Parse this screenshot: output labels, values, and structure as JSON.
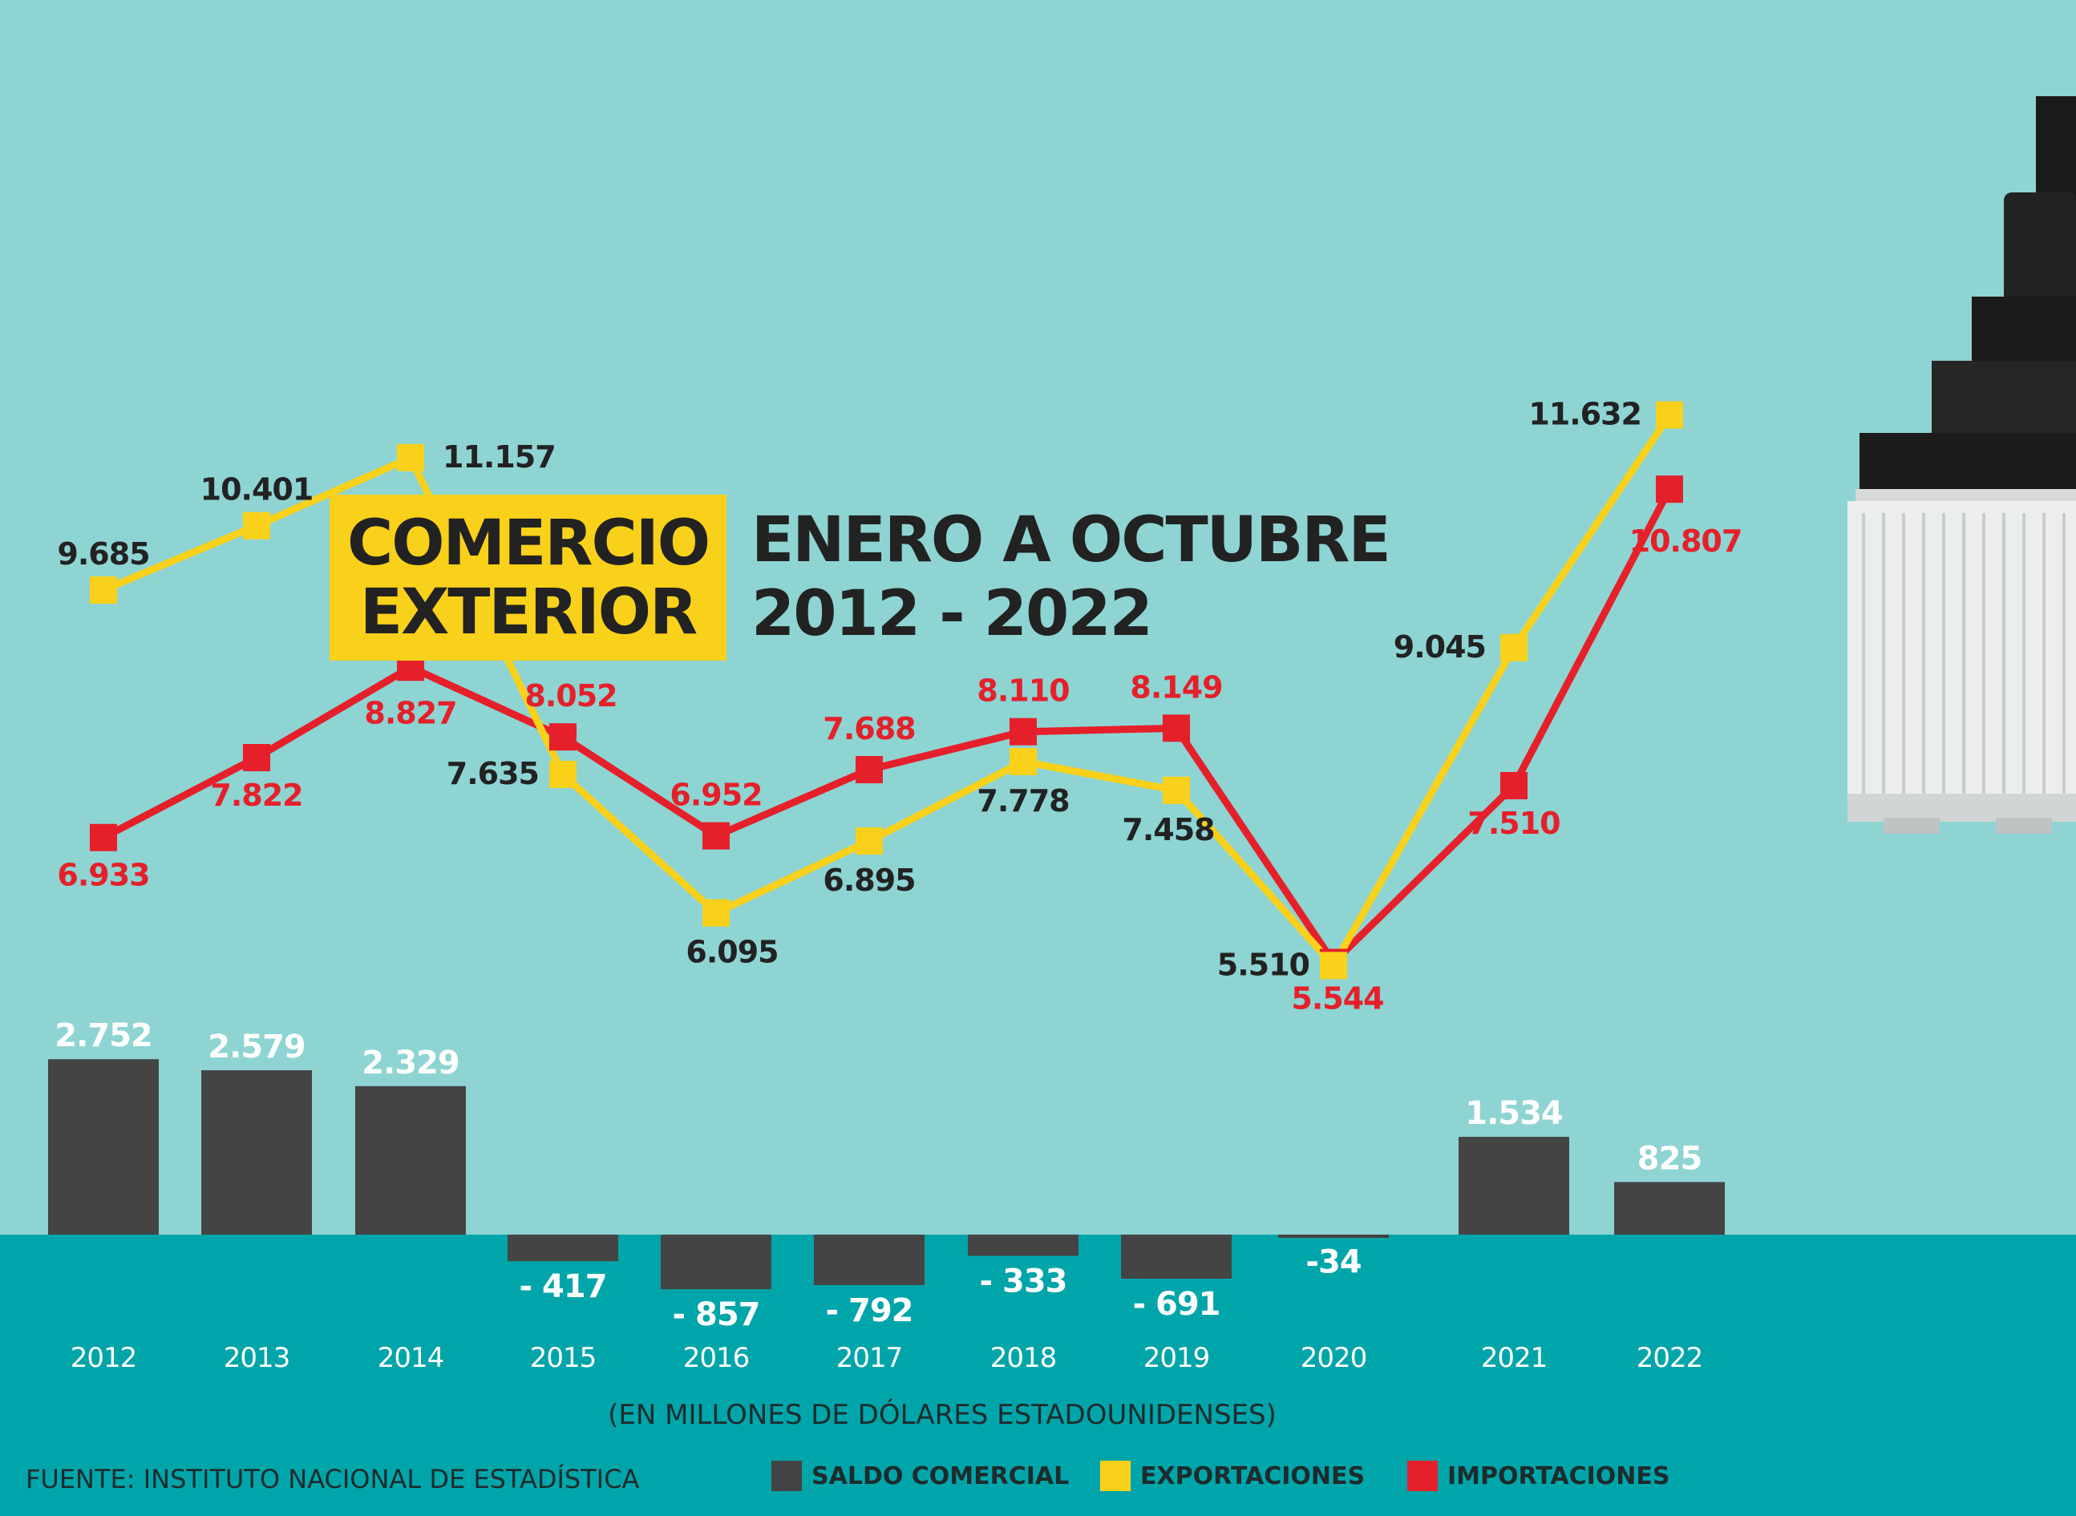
{
  "title": {
    "box_line1": "COMERCIO",
    "box_line2": "EXTERIOR",
    "subtitle_line1": "ENERO A OCTUBRE",
    "subtitle_line2": "2012 - 2022"
  },
  "unit_note": "(EN MILLONES DE DÓLARES ESTADOUNIDENSES)",
  "source": "FUENTE: INSTITUTO NACIONAL DE ESTADÍSTICA",
  "legend": [
    {
      "label": "SALDO COMERCIAL",
      "color": "#444444"
    },
    {
      "label": "EXPORTACIONES",
      "color": "#f9d11a"
    },
    {
      "label": "IMPORTACIONES",
      "color": "#e5202a"
    }
  ],
  "chart_data": {
    "type": "bar+line",
    "categories": [
      "2012",
      "2013",
      "2014",
      "2015",
      "2016",
      "2017",
      "2018",
      "2019",
      "2020",
      "2021",
      "2022"
    ],
    "series": [
      {
        "name": "SALDO COMERCIAL",
        "type": "bar",
        "color": "#444444",
        "values": [
          2752,
          2579,
          2329,
          -417,
          -857,
          -792,
          -333,
          -691,
          -34,
          1534,
          825
        ],
        "labels": [
          "2.752",
          "2.579",
          "2.329",
          "- 417",
          "- 857",
          "- 792",
          "- 333",
          "- 691",
          "-34",
          "1.534",
          "825"
        ]
      },
      {
        "name": "EXPORTACIONES",
        "type": "line",
        "color": "#f9d11a",
        "values": [
          9685,
          10401,
          11157,
          7635,
          6095,
          6895,
          7778,
          7458,
          5510,
          9045,
          11632
        ],
        "labels": [
          "9.685",
          "10.401",
          "11.157",
          "7.635",
          "6.095",
          "6.895",
          "7.778",
          "7.458",
          "5.510",
          "9.045",
          "11.632"
        ]
      },
      {
        "name": "IMPORTACIONES",
        "type": "line",
        "color": "#e5202a",
        "values": [
          6933,
          7822,
          8827,
          8052,
          6952,
          7688,
          8110,
          8149,
          5544,
          7510,
          10807
        ],
        "labels": [
          "6.933",
          "7.822",
          "8.827",
          "8.052",
          "6.952",
          "7.688",
          "8.110",
          "8.149",
          "5.544",
          "7.510",
          "10.807"
        ]
      }
    ]
  }
}
